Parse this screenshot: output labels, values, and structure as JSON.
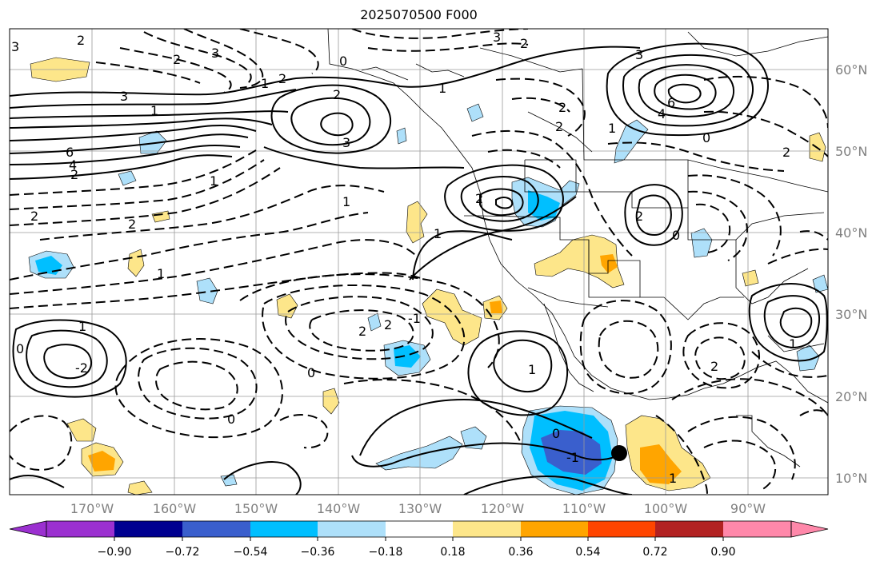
{
  "title": "2025070500 F000",
  "lat_labels": [
    "60°N",
    "50°N",
    "40°N",
    "30°N",
    "20°N",
    "10°N"
  ],
  "lon_labels": [
    "170°W",
    "160°W",
    "150°W",
    "140°W",
    "130°W",
    "120°W",
    "110°W",
    "100°W",
    "90°W"
  ],
  "colorbar": {
    "tick_labels": [
      "−0.90",
      "−0.72",
      "−0.54",
      "−0.36",
      "−0.18",
      "0.18",
      "0.36",
      "0.54",
      "0.72",
      "0.90"
    ],
    "colors": [
      "#9b30d0",
      "#000090",
      "#3a5fcd",
      "#00bfff",
      "#aee0fa",
      "#ffffff",
      "#fde68a",
      "#ffa500",
      "#ff4500",
      "#b22222",
      "#ff88aa"
    ]
  },
  "contour_labels": [
    "3",
    "2",
    "3",
    "2",
    "1",
    "3",
    "2",
    "3",
    "6",
    "4",
    "2",
    "1",
    "2",
    "3",
    "2",
    "1",
    "2",
    "3",
    "2",
    "0",
    "1",
    "1",
    "2",
    "2",
    "0",
    "2",
    "1",
    "6",
    "4",
    "2",
    "2",
    "1",
    "1",
    "0",
    "2",
    "2",
    "-1",
    "1",
    "0",
    "-2",
    "0",
    "0",
    "1",
    "1",
    "0",
    "-1",
    "2",
    "1"
  ],
  "marker": "storm-center"
}
